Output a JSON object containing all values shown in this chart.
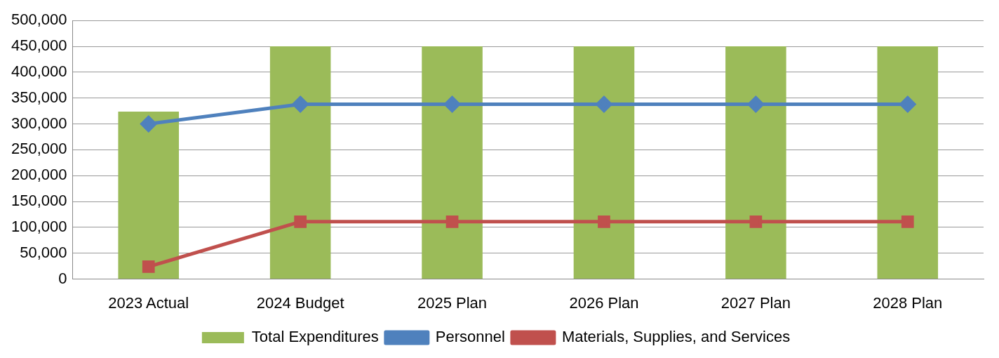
{
  "chart_data": {
    "type": "bar",
    "categories": [
      "2023 Actual",
      "2024 Budget",
      "2025 Plan",
      "2026 Plan",
      "2027 Plan",
      "2028 Plan"
    ],
    "series": [
      {
        "name": "Total Expenditures",
        "color": "#9bbb59",
        "values": [
          324000,
          450000,
          450000,
          450000,
          450000,
          450000
        ]
      },
      {
        "name": "Personnel",
        "type": "line",
        "color": "#4f81bd",
        "marker": "diamond",
        "values": [
          300000,
          338000,
          338000,
          338000,
          338000,
          338000
        ]
      },
      {
        "name": "Materials, Supplies, and Services",
        "type": "line",
        "color": "#c0504d",
        "marker": "square",
        "values": [
          24000,
          111000,
          111000,
          111000,
          111000,
          111000
        ]
      }
    ],
    "ylim": [
      0,
      500000
    ],
    "yticks": [
      {
        "value": 0,
        "label": "0"
      },
      {
        "value": 50000,
        "label": "50,000"
      },
      {
        "value": 100000,
        "label": "100,000"
      },
      {
        "value": 150000,
        "label": "150,000"
      },
      {
        "value": 200000,
        "label": "200,000"
      },
      {
        "value": 250000,
        "label": "250,000"
      },
      {
        "value": 300000,
        "label": "300,000"
      },
      {
        "value": 350000,
        "label": "350,000"
      },
      {
        "value": 400000,
        "label": "400,000"
      },
      {
        "value": 450000,
        "label": "450,000"
      },
      {
        "value": 500000,
        "label": "500,000"
      }
    ],
    "grid": "y",
    "legend": "bottom"
  }
}
